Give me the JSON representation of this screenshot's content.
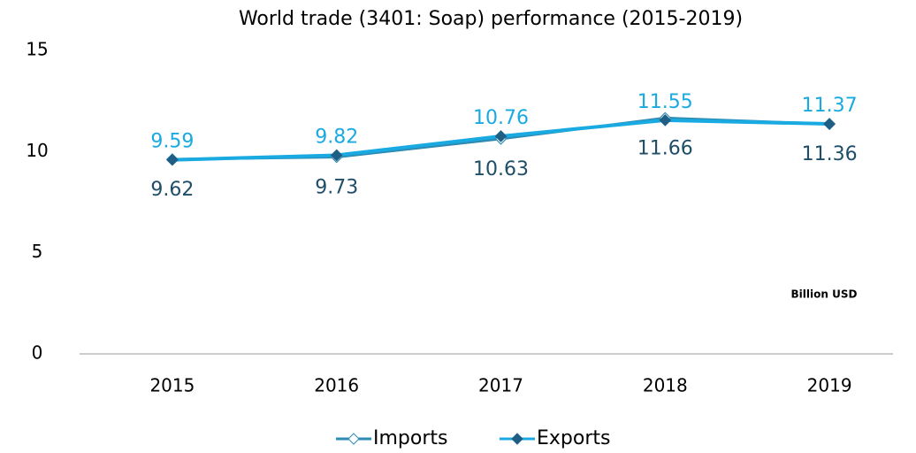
{
  "chart_data": {
    "type": "line",
    "title": "World trade (3401: Soap) performance (2015-2019)",
    "annotation": "Billion USD",
    "categories": [
      "2015",
      "2016",
      "2017",
      "2018",
      "2019"
    ],
    "series": [
      {
        "name": "Imports",
        "color": "#2e8bb3",
        "label_color": "#1f4e69",
        "values": [
          9.62,
          9.73,
          10.63,
          11.66,
          11.36
        ]
      },
      {
        "name": "Exports",
        "color": "#1aaae2",
        "label_color": "#1aaae2",
        "values": [
          9.59,
          9.82,
          10.76,
          11.55,
          11.37
        ]
      }
    ],
    "ylim": [
      0,
      15
    ],
    "yticks": [
      0,
      5,
      10,
      15
    ],
    "grid": false,
    "legend": "bottom"
  }
}
